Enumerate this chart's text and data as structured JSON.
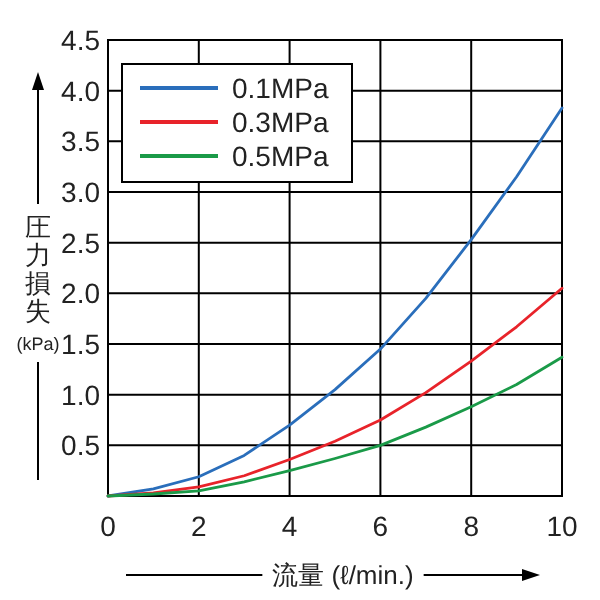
{
  "chart_data": {
    "type": "line",
    "xlabel": "流量 (ℓ/min.)",
    "ylabel": "圧力損失(kPa)",
    "x": [
      0,
      1,
      2,
      3,
      4,
      5,
      6,
      7,
      8,
      9,
      10
    ],
    "series": [
      {
        "name": "0.1MPa",
        "color": "#2a6ebb",
        "values": [
          0,
          0.07,
          0.19,
          0.4,
          0.7,
          1.05,
          1.45,
          1.95,
          2.53,
          3.15,
          3.83
        ]
      },
      {
        "name": "0.3MPa",
        "color": "#e8232a",
        "values": [
          0,
          0.03,
          0.09,
          0.2,
          0.36,
          0.54,
          0.75,
          1.02,
          1.33,
          1.67,
          2.05
        ]
      },
      {
        "name": "0.5MPa",
        "color": "#1a9a48",
        "values": [
          0,
          0.02,
          0.05,
          0.14,
          0.25,
          0.37,
          0.5,
          0.68,
          0.88,
          1.1,
          1.37
        ]
      }
    ],
    "xlim": [
      0,
      10
    ],
    "xticks": [
      0,
      2,
      4,
      6,
      8,
      10
    ],
    "ylim": [
      0,
      4.5
    ],
    "yticks": [
      {
        "value": 0.5,
        "label": "0.5"
      },
      {
        "value": 1,
        "label": "1.0"
      },
      {
        "value": 1.5,
        "label": "1.5"
      },
      {
        "value": 2,
        "label": "2.0"
      },
      {
        "value": 2.5,
        "label": "2.5"
      },
      {
        "value": 3,
        "label": "3.0"
      },
      {
        "value": 3.5,
        "label": "3.5"
      },
      {
        "value": 4,
        "label": "4.0"
      },
      {
        "value": 4.5,
        "label": "4.5"
      }
    ],
    "grid": true,
    "legend": "top left",
    "marker": "none",
    "line_style": "solid"
  }
}
